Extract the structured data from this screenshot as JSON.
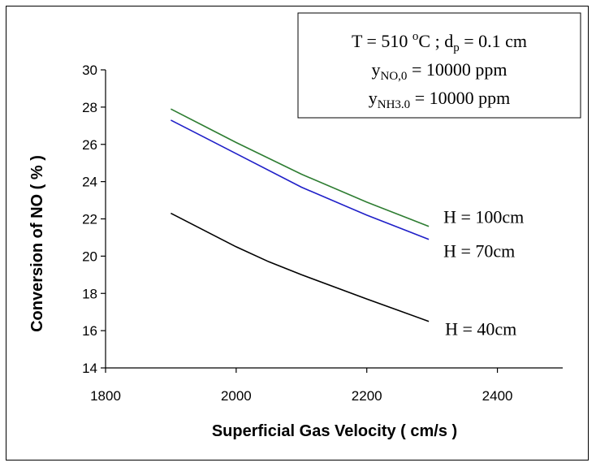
{
  "chart_data": {
    "type": "line",
    "title": "",
    "xlabel": "Superficial Gas Velocity ( cm/s )",
    "ylabel": "Conversion of NO ( % )",
    "xlim": [
      1800,
      2500
    ],
    "ylim": [
      14,
      30
    ],
    "xticks": [
      1800,
      2000,
      2200,
      2400
    ],
    "yticks": [
      14,
      16,
      18,
      20,
      22,
      24,
      26,
      28,
      30
    ],
    "xtick_labels": [
      "1800",
      "2000",
      "2200",
      "2400"
    ],
    "ytick_labels": [
      "14",
      "16",
      "18",
      "20",
      "22",
      "24",
      "26",
      "28",
      "30"
    ],
    "grid": false,
    "legend": "none",
    "series": [
      {
        "name": "H = 100cm",
        "color": "#2e7d32",
        "x": [
          1900,
          2000,
          2100,
          2200,
          2295
        ],
        "y": [
          27.9,
          26.1,
          24.4,
          22.9,
          21.6
        ]
      },
      {
        "name": "H = 70cm",
        "color": "#1f1fc8",
        "x": [
          1900,
          2000,
          2100,
          2200,
          2295
        ],
        "y": [
          27.3,
          25.5,
          23.7,
          22.2,
          20.9
        ]
      },
      {
        "name": "H = 40cm",
        "color": "#000000",
        "x": [
          1900,
          2000,
          2050,
          2100,
          2200,
          2295
        ],
        "y": [
          22.3,
          20.5,
          19.7,
          19.0,
          17.7,
          16.5
        ]
      }
    ],
    "annotation": {
      "line1": {
        "t": "T = 510 ",
        "deg_sup": "o",
        "c": "C ; d",
        "p_sub": "p",
        "rest": " = 0.1 cm"
      },
      "line2": {
        "y": "y",
        "sub": "NO,0",
        "rest": " = 10000 ppm"
      },
      "line3": {
        "y": "y",
        "sub": "NH3.0",
        "rest": " = 10000 ppm"
      }
    }
  }
}
